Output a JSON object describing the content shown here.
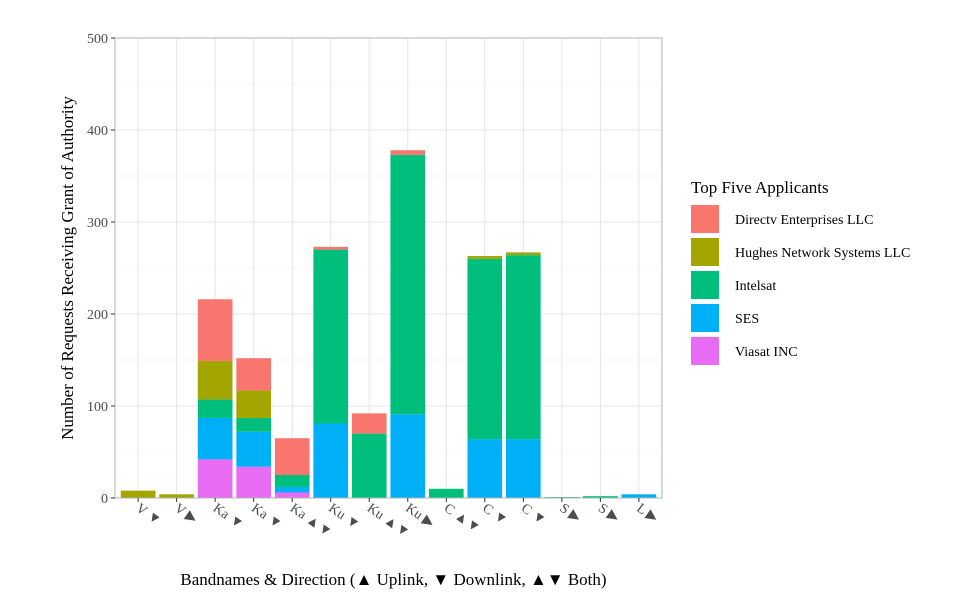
{
  "chart_data": {
    "type": "bar",
    "stacked": true,
    "title": "",
    "xlabel": "Bandnames & Direction (▲ Uplink, ▼ Downlink, ▲▼ Both)",
    "ylabel": "Number of Requests Receiving Grant of Authority",
    "ylim": [
      0,
      500
    ],
    "yticks": [
      0,
      100,
      200,
      300,
      400,
      500
    ],
    "grid": true,
    "legend_position": "right",
    "legend_title": "Top Five Applicants",
    "categories": [
      "V ▼",
      "V ▶",
      "Ka ▼",
      "Ka ▼",
      "Ka ▲▼",
      "Ku ▼",
      "Ku ▲▼",
      "Ku ▶",
      "C ▲▼",
      "C ▼",
      "C ▼",
      "S ▶",
      "S ▶",
      "L ▶"
    ],
    "series": [
      {
        "name": "Directv Enterprises LLC",
        "color": "#F8766D",
        "values": [
          0,
          0,
          67,
          35,
          40,
          3,
          22,
          5,
          0,
          0,
          0,
          0,
          0,
          0
        ]
      },
      {
        "name": "Hughes Network Systems LLC",
        "color": "#A3A500",
        "values": [
          8,
          4,
          42,
          30,
          0,
          0,
          0,
          0,
          0,
          3,
          3,
          0,
          0,
          0
        ]
      },
      {
        "name": "Intelsat",
        "color": "#00BF7D",
        "values": [
          0,
          0,
          20,
          15,
          13,
          189,
          70,
          282,
          10,
          196,
          200,
          1,
          2,
          0
        ]
      },
      {
        "name": "SES",
        "color": "#00B0F6",
        "values": [
          0,
          0,
          45,
          38,
          6,
          81,
          0,
          91,
          0,
          64,
          64,
          0,
          0,
          4
        ]
      },
      {
        "name": "Viasat INC",
        "color": "#E76BF3",
        "values": [
          0,
          0,
          42,
          34,
          6,
          0,
          0,
          0,
          0,
          0,
          0,
          0,
          0,
          0
        ]
      }
    ]
  }
}
